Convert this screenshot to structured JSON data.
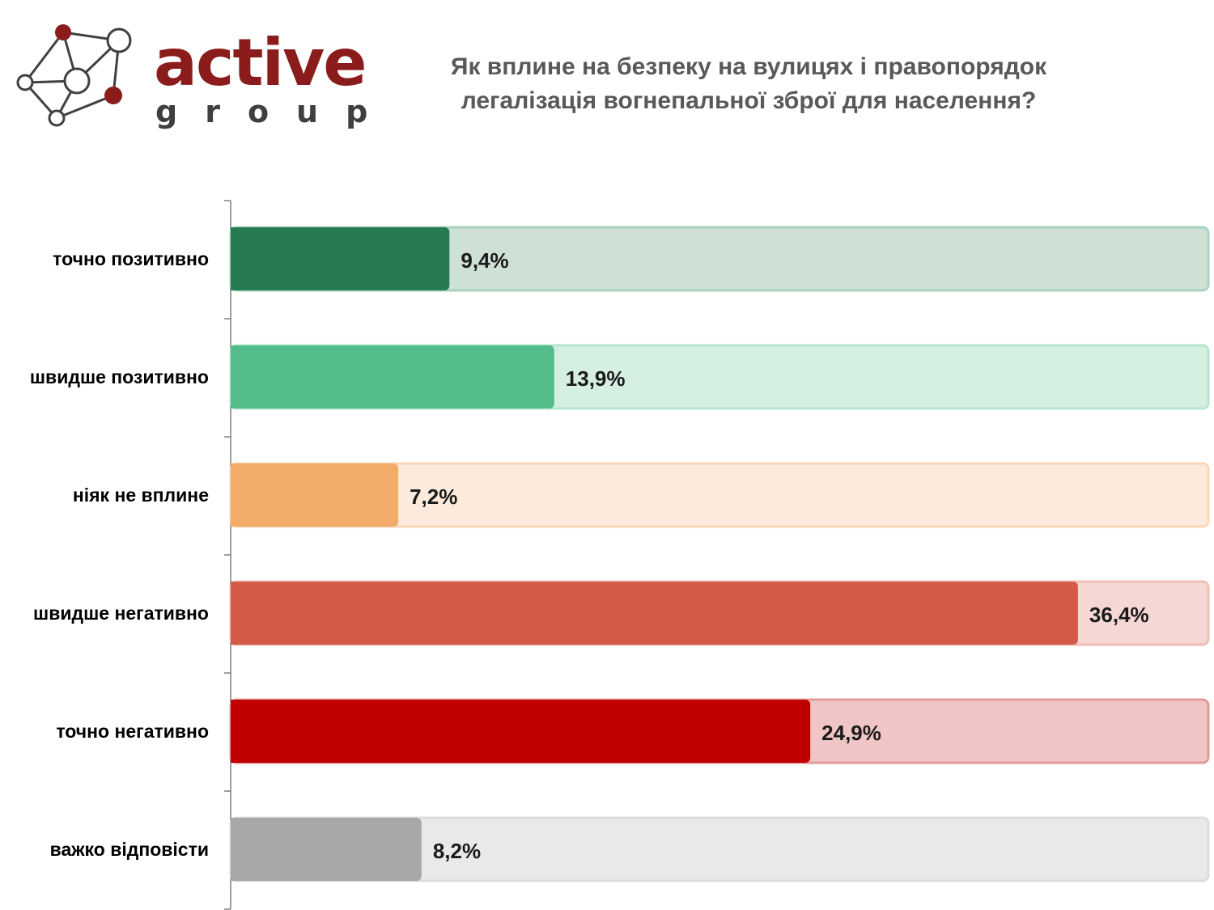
{
  "logo": {
    "word": "active",
    "sub": "group"
  },
  "chart_data": {
    "type": "bar",
    "orientation": "horizontal",
    "title": "Як вплине на безпеку на вулицях і правопорядок легалізація вогнепальної зброї для населення?",
    "title_lines": [
      "Як вплине на безпеку на вулицях і правопорядок",
      "легалізація вогнепальної зброї для населення?"
    ],
    "categories": [
      "точно позитивно",
      "швидше позитивно",
      "ніяк не вплине",
      "швидше негативно",
      "точно негативно",
      "важко відповісти"
    ],
    "values": [
      9.4,
      13.9,
      7.2,
      36.4,
      24.9,
      8.2
    ],
    "value_labels": [
      "9,4%",
      "13,9%",
      "7,2%",
      "36,4%",
      "24,9%",
      "8,2%"
    ],
    "unit": "%",
    "xlim": [
      0,
      42
    ],
    "grid": false,
    "colors": [
      "#267a52",
      "#52bd88",
      "#f2ab69",
      "#d45b4a",
      "#c00000",
      "#a8a8a8"
    ],
    "track_colors": [
      "#cfe0d7",
      "#d5efe2",
      "#fcebdc",
      "#f5d7d3",
      "#f0c5c5",
      "#e9e9e9"
    ],
    "track_border_colors": [
      "#a9d3bc",
      "#b7e6cd",
      "#fbd6b5",
      "#eebfb8",
      "#e49a9a",
      "#dcdcdc"
    ]
  }
}
